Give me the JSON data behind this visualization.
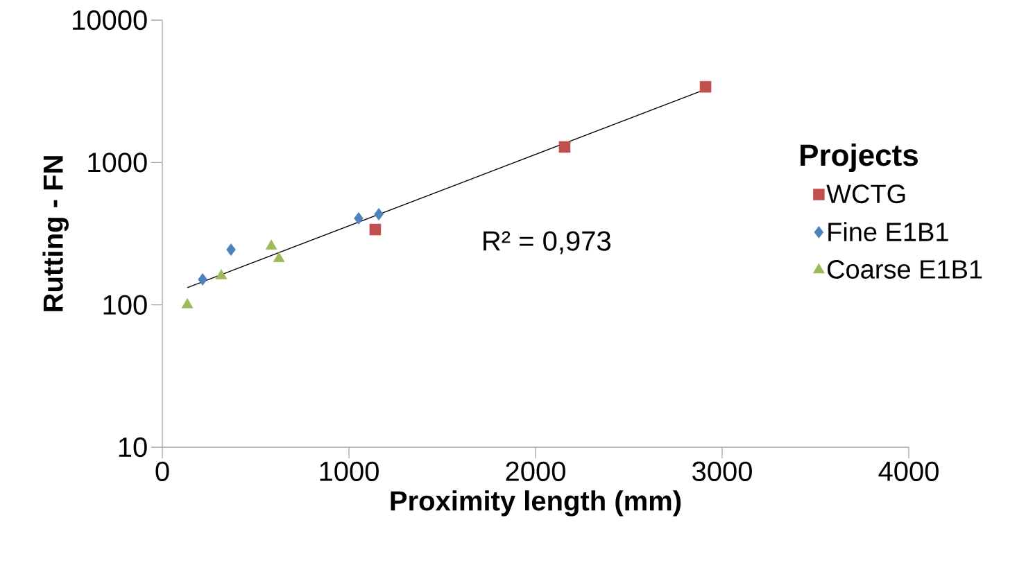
{
  "chart_data": {
    "type": "scatter",
    "xlabel": "Proximity length  (mm)",
    "ylabel": "Rutting - FN",
    "legend_title": "Projects",
    "annotations": [
      "R² = 0,973"
    ],
    "log": "y",
    "legend": "right",
    "xlim": [
      0,
      4000
    ],
    "xticks": [
      0,
      1000,
      2000,
      3000,
      4000
    ],
    "ylim": [
      10,
      10000
    ],
    "yticks": [
      10,
      100,
      1000,
      10000
    ],
    "series": [
      {
        "name": "WCTG",
        "type": "scatter",
        "marker": "square",
        "color": "#c0504d",
        "x": [
          2911,
          2156,
          1141
        ],
        "values": [
          3400,
          1285,
          338
        ]
      },
      {
        "name": "Fine E1B1",
        "type": "scatter",
        "marker": "diamond",
        "color": "#4f81bd",
        "x": [
          216,
          368,
          1052,
          1160
        ],
        "values": [
          151,
          244,
          405,
          433
        ]
      },
      {
        "name": "Coarse E1B1",
        "type": "scatter",
        "marker": "triangle",
        "color": "#9bbb59",
        "x": [
          134,
          316,
          584,
          625
        ],
        "values": [
          100,
          160,
          258,
          211
        ]
      },
      {
        "type": "line",
        "marker": "none",
        "color": "#000000",
        "x": [
          134,
          2911
        ],
        "values": [
          132,
          3260
        ]
      }
    ]
  }
}
